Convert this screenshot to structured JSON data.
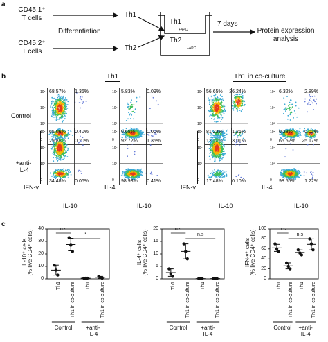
{
  "panel_a": {
    "label": "a",
    "donor1_line1": "CD45.1⁺",
    "donor1_line2": "T cells",
    "donor2_line1": "CD45.2⁺",
    "donor2_line2": "T cells",
    "process": "Differentiation",
    "th1": "Th1",
    "th2": "Th2",
    "well_top": "Th1",
    "well_top_sub": "+APC",
    "well_bottom": "Th2",
    "well_bottom_sub": "+APC",
    "duration": "7 days",
    "readout_line1": "Protein expression",
    "readout_line2": "analysis"
  },
  "panel_b": {
    "label": "b",
    "header_left": "Th1",
    "header_right": "Th1 in co-culture",
    "row_labels": [
      "Control",
      "+anti-\nIL-4"
    ],
    "row_label_1": "Control",
    "row_label_2a": "+anti-",
    "row_label_2b": "IL-4",
    "y_label_a": "IFN-γ",
    "y_label_b": "IL-4",
    "x_label": "IL-10",
    "tick_labels": [
      "10⁵",
      "10⁴",
      "10³",
      "0"
    ],
    "quadrants": [
      [
        "68.57%",
        "1.36%",
        "29.86%",
        "0.20%"
      ],
      [
        "5.83%",
        "0.09%",
        "92.72%",
        "1.35%"
      ],
      [
        "56.65%",
        "26.24%",
        "13.98%",
        "3.01%"
      ],
      [
        "6.32%",
        "2.89%",
        "65.52%",
        "25.17%"
      ],
      [
        "65.06%",
        "0.40%",
        "34.48%",
        "0.06%"
      ],
      [
        "0.65%",
        "0.00%",
        "98.93%",
        "0.41%"
      ],
      [
        "81.23%",
        "1.26%",
        "17.48%",
        "0.10%"
      ],
      [
        "0.23%",
        "0.02%",
        "98.55%",
        "1.22%"
      ]
    ]
  },
  "panel_c": {
    "label": "c",
    "chart_data": [
      {
        "type": "scatter",
        "ylabel_line1": "IL-10⁺ cells",
        "ylabel_line2": "(% live CD4⁺ cells)",
        "yticks": [
          "0",
          "10",
          "20",
          "30",
          "40"
        ],
        "ylim": [
          0,
          40
        ],
        "categories": [
          "Th1",
          "Th1 in co-culture",
          "Th1",
          "Th1 in co-culture"
        ],
        "points": [
          [
            11,
            7,
            3
          ],
          [
            33,
            27,
            22
          ],
          [
            0.5,
            0.5,
            0.5
          ],
          [
            2,
            1,
            0.5
          ]
        ],
        "means": [
          7,
          27.5,
          0.5,
          1.2
        ],
        "sd": [
          4,
          5,
          0.3,
          0.8
        ],
        "significance": [
          {
            "label": "n.s",
            "pair": [
              0,
              1
            ]
          },
          {
            "label": "*",
            "pair": [
              1,
              3
            ]
          }
        ],
        "groups": [
          "Control",
          "+anti-\nIL-4"
        ]
      },
      {
        "type": "scatter",
        "ylabel_line1": "IL-4⁺ cells",
        "ylabel_line2": "(% live CD4⁺ cells)",
        "yticks": [
          "0",
          "5",
          "10",
          "15",
          "20"
        ],
        "ylim": [
          0,
          20
        ],
        "categories": [
          "Th1",
          "Th1 in co-culture",
          "Th1",
          "Th1 in co-culture"
        ],
        "points": [
          [
            4,
            2,
            1
          ],
          [
            14,
            11,
            8
          ],
          [
            0.1,
            0.1,
            0.1
          ],
          [
            0.1,
            0.1,
            0.1
          ]
        ],
        "means": [
          2.5,
          11,
          0.1,
          0.1
        ],
        "sd": [
          1.5,
          3,
          0.05,
          0.05
        ],
        "significance": [
          {
            "label": "n.s",
            "pair": [
              0,
              1
            ]
          },
          {
            "label": "n.s",
            "pair": [
              1,
              3
            ]
          }
        ],
        "groups": [
          "Control",
          "+anti-\nIL-4"
        ]
      },
      {
        "type": "scatter",
        "ylabel_line1": "IFN-γ⁺ cells",
        "ylabel_line2": "(% live CD4⁺ cells)",
        "yticks": [
          "0",
          "20",
          "40",
          "60",
          "80",
          "100"
        ],
        "ylim": [
          0,
          100
        ],
        "categories": [
          "Th1",
          "Th1 in co-culture",
          "Th1",
          "Th1 in co-culture"
        ],
        "points": [
          [
            70,
            60,
            55
          ],
          [
            32,
            25,
            20
          ],
          [
            58,
            52,
            48
          ],
          [
            80,
            70,
            58
          ]
        ],
        "means": [
          62,
          26,
          53,
          69
        ],
        "sd": [
          7,
          6,
          5,
          11
        ],
        "significance": [
          {
            "label": "n.s",
            "pair": [
              0,
              1
            ]
          },
          {
            "label": "n.s",
            "pair": [
              1,
              3
            ]
          }
        ],
        "groups": [
          "Control",
          "+anti-\nIL-4"
        ]
      }
    ],
    "group_control": "Control",
    "group_anti_a": "+anti-",
    "group_anti_b": "IL-4"
  }
}
